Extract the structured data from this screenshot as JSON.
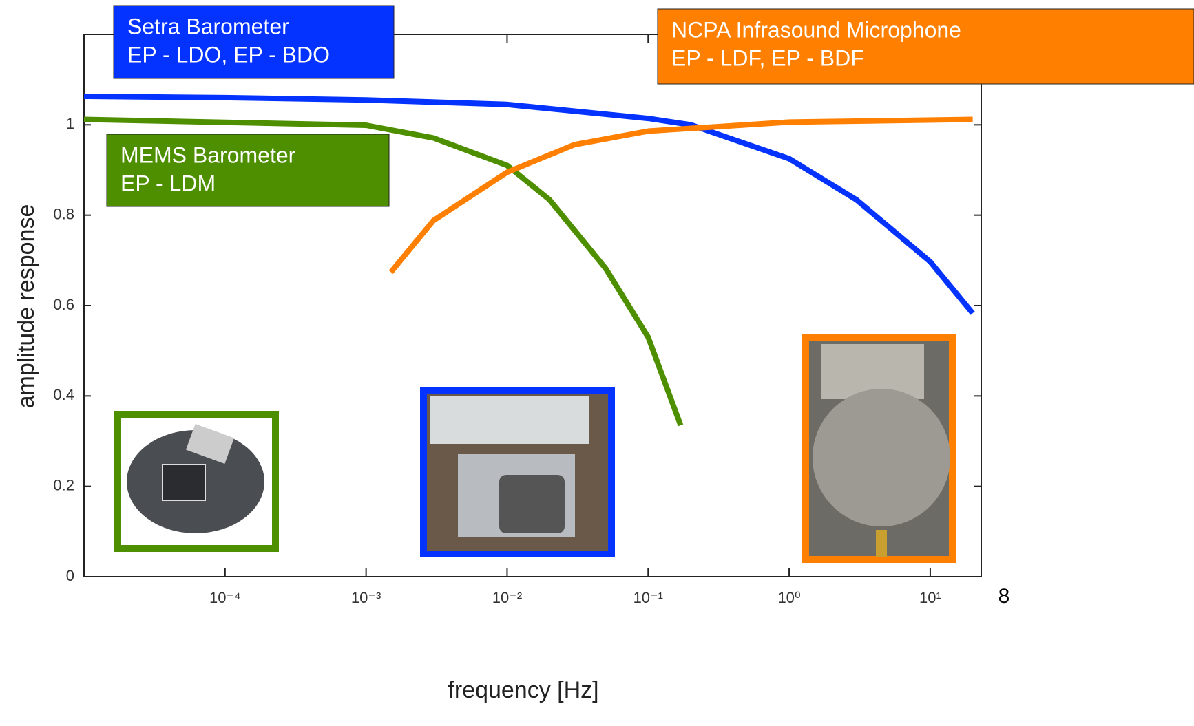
{
  "chart_data": {
    "type": "line",
    "xlabel": "frequency [Hz]",
    "ylabel": "amplitude response",
    "xlim": [
      1e-05,
      23
    ],
    "ylim": [
      0,
      1.2
    ],
    "xscale": "log",
    "xticks": [
      {
        "value": 0.0001,
        "label": "10⁻⁴"
      },
      {
        "value": 0.001,
        "label": "10⁻³"
      },
      {
        "value": 0.01,
        "label": "10⁻²"
      },
      {
        "value": 0.1,
        "label": "10⁻¹"
      },
      {
        "value": 1,
        "label": "10⁰"
      },
      {
        "value": 10,
        "label": "10¹"
      }
    ],
    "yticks": [
      0,
      0.2,
      0.4,
      0.6,
      0.8,
      1
    ],
    "series": [
      {
        "name": "Setra Barometer",
        "sublabel": "EP - LDO, EP - BDO",
        "color": "#0433ff",
        "x": [
          1e-05,
          0.0001,
          0.001,
          0.01,
          0.1,
          0.2,
          1,
          3,
          10,
          20
        ],
        "values": [
          1.063,
          1.06,
          1.055,
          1.045,
          1.014,
          1.0,
          0.925,
          0.834,
          0.697,
          0.583
        ]
      },
      {
        "name": "MEMS Barometer",
        "sublabel": "EP - LDM",
        "color": "#4e8f00",
        "x": [
          1e-05,
          0.001,
          0.003,
          0.01,
          0.02,
          0.05,
          0.1,
          0.17
        ],
        "values": [
          1.012,
          0.999,
          0.971,
          0.91,
          0.834,
          0.682,
          0.53,
          0.335
        ]
      },
      {
        "name": "NCPA Infrasound Microphone",
        "sublabel": "EP - LDF, EP - BDF",
        "color": "#ff7f00",
        "x": [
          0.0015,
          0.003,
          0.01,
          0.03,
          0.1,
          1,
          20
        ],
        "values": [
          0.674,
          0.788,
          0.895,
          0.956,
          0.986,
          1.006,
          1.012
        ]
      }
    ]
  },
  "page_number": "8"
}
